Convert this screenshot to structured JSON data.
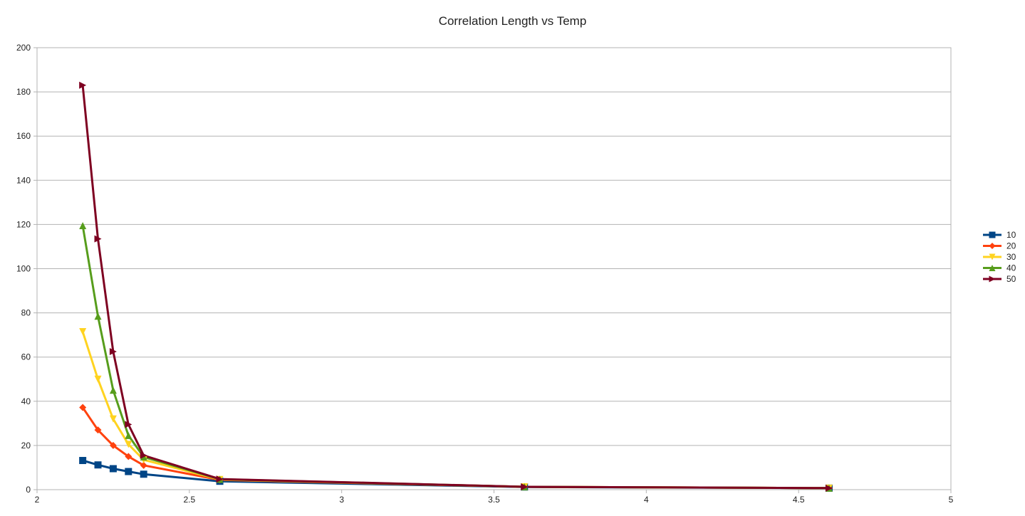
{
  "chart_data": {
    "type": "line",
    "title": "Correlation Length vs Temp",
    "xlabel": "",
    "ylabel": "",
    "xlim": [
      2,
      5
    ],
    "ylim": [
      0,
      200
    ],
    "x_ticks": [
      "2",
      "2.5",
      "3",
      "3.5",
      "4",
      "4.5",
      "5"
    ],
    "y_ticks": [
      "0",
      "20",
      "40",
      "60",
      "80",
      "100",
      "120",
      "140",
      "160",
      "180",
      "200"
    ],
    "grid": "horizontal",
    "legend_position": "right",
    "series": [
      {
        "name": "10",
        "color": "#004586",
        "marker": "square",
        "points": [
          [
            2.15,
            13.2
          ],
          [
            2.2,
            11.2
          ],
          [
            2.25,
            9.5
          ],
          [
            2.3,
            8.2
          ],
          [
            2.35,
            7.0
          ],
          [
            2.6,
            3.8
          ],
          [
            3.6,
            1.2
          ],
          [
            4.6,
            0.7
          ]
        ]
      },
      {
        "name": "20",
        "color": "#ff420e",
        "marker": "diamond",
        "points": [
          [
            2.15,
            37.2
          ],
          [
            2.2,
            27.0
          ],
          [
            2.25,
            20.0
          ],
          [
            2.3,
            15.0
          ],
          [
            2.35,
            11.0
          ],
          [
            2.6,
            4.4
          ],
          [
            3.6,
            1.3
          ],
          [
            4.6,
            0.7
          ]
        ]
      },
      {
        "name": "30",
        "color": "#ffd320",
        "marker": "triangle-down",
        "points": [
          [
            2.15,
            71.5
          ],
          [
            2.2,
            50.0
          ],
          [
            2.25,
            32.0
          ],
          [
            2.3,
            20.5
          ],
          [
            2.35,
            13.5
          ],
          [
            2.6,
            4.6
          ],
          [
            3.6,
            1.3
          ],
          [
            4.6,
            0.7
          ]
        ]
      },
      {
        "name": "40",
        "color": "#579d1c",
        "marker": "triangle-up",
        "points": [
          [
            2.15,
            119.5
          ],
          [
            2.2,
            78.5
          ],
          [
            2.25,
            45.0
          ],
          [
            2.3,
            24.5
          ],
          [
            2.35,
            14.8
          ],
          [
            2.6,
            4.7
          ],
          [
            3.6,
            1.3
          ],
          [
            4.6,
            0.7
          ]
        ]
      },
      {
        "name": "50",
        "color": "#7e0021",
        "marker": "triangle-right",
        "points": [
          [
            2.15,
            183.0
          ],
          [
            2.2,
            113.5
          ],
          [
            2.25,
            62.5
          ],
          [
            2.3,
            29.5
          ],
          [
            2.35,
            15.5
          ],
          [
            2.6,
            4.8
          ],
          [
            3.6,
            1.3
          ],
          [
            4.6,
            0.7
          ]
        ]
      }
    ]
  }
}
